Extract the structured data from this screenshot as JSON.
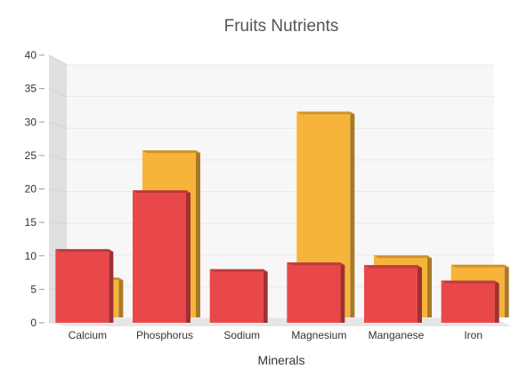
{
  "chart_data": {
    "type": "bar",
    "title": "Fruits Nutrients",
    "xlabel": "Minerals",
    "ylabel": "",
    "categories": [
      "Calcium",
      "Phosphorus",
      "Sodium",
      "Magnesium",
      "Manganese",
      "Iron"
    ],
    "series": [
      {
        "values": [
          6.5,
          25.5,
          0,
          31.3,
          9.8,
          8.4
        ],
        "color": "#F7B43A"
      },
      {
        "values": [
          11.0,
          19.8,
          8.0,
          9.0,
          8.6,
          6.3
        ],
        "color": "#E9484B"
      }
    ],
    "ylim": [
      0,
      40
    ],
    "yticks": [
      0,
      5,
      10,
      15,
      20,
      25,
      30,
      35,
      40
    ],
    "grid": true,
    "style": "3d-column"
  }
}
